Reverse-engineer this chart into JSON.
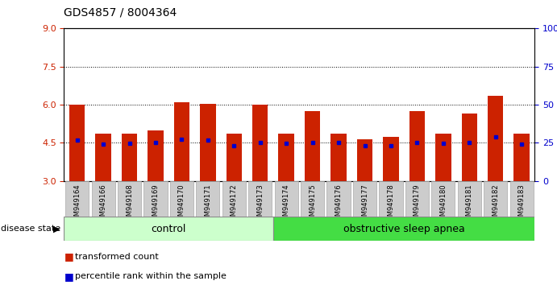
{
  "title": "GDS4857 / 8004364",
  "samples": [
    "GSM949164",
    "GSM949166",
    "GSM949168",
    "GSM949169",
    "GSM949170",
    "GSM949171",
    "GSM949172",
    "GSM949173",
    "GSM949174",
    "GSM949175",
    "GSM949176",
    "GSM949177",
    "GSM949178",
    "GSM949179",
    "GSM949180",
    "GSM949181",
    "GSM949182",
    "GSM949183"
  ],
  "bar_heights": [
    6.0,
    4.85,
    4.85,
    5.0,
    6.1,
    6.05,
    4.85,
    6.0,
    4.85,
    5.75,
    4.85,
    4.65,
    4.75,
    5.75,
    4.85,
    5.65,
    6.35,
    4.85
  ],
  "blue_dot_y": [
    4.6,
    4.45,
    4.47,
    4.52,
    4.65,
    4.62,
    4.38,
    4.52,
    4.47,
    4.52,
    4.52,
    4.38,
    4.38,
    4.52,
    4.48,
    4.52,
    4.75,
    4.45
  ],
  "ymin": 3,
  "ymax": 9,
  "yticks_left": [
    3,
    4.5,
    6,
    7.5,
    9
  ],
  "yticks_right": [
    0,
    25,
    50,
    75,
    100
  ],
  "bar_color": "#cc2200",
  "dot_color": "#0000cc",
  "bg_color": "#ffffff",
  "n_control": 8,
  "n_apnea": 10,
  "control_color": "#ccffcc",
  "apnea_color": "#44dd44",
  "control_label": "control",
  "apnea_label": "obstructive sleep apnea",
  "disease_state_label": "disease state",
  "legend_bar_label": "transformed count",
  "legend_dot_label": "percentile rank within the sample",
  "bar_width": 0.6,
  "tick_bg_color": "#cccccc"
}
